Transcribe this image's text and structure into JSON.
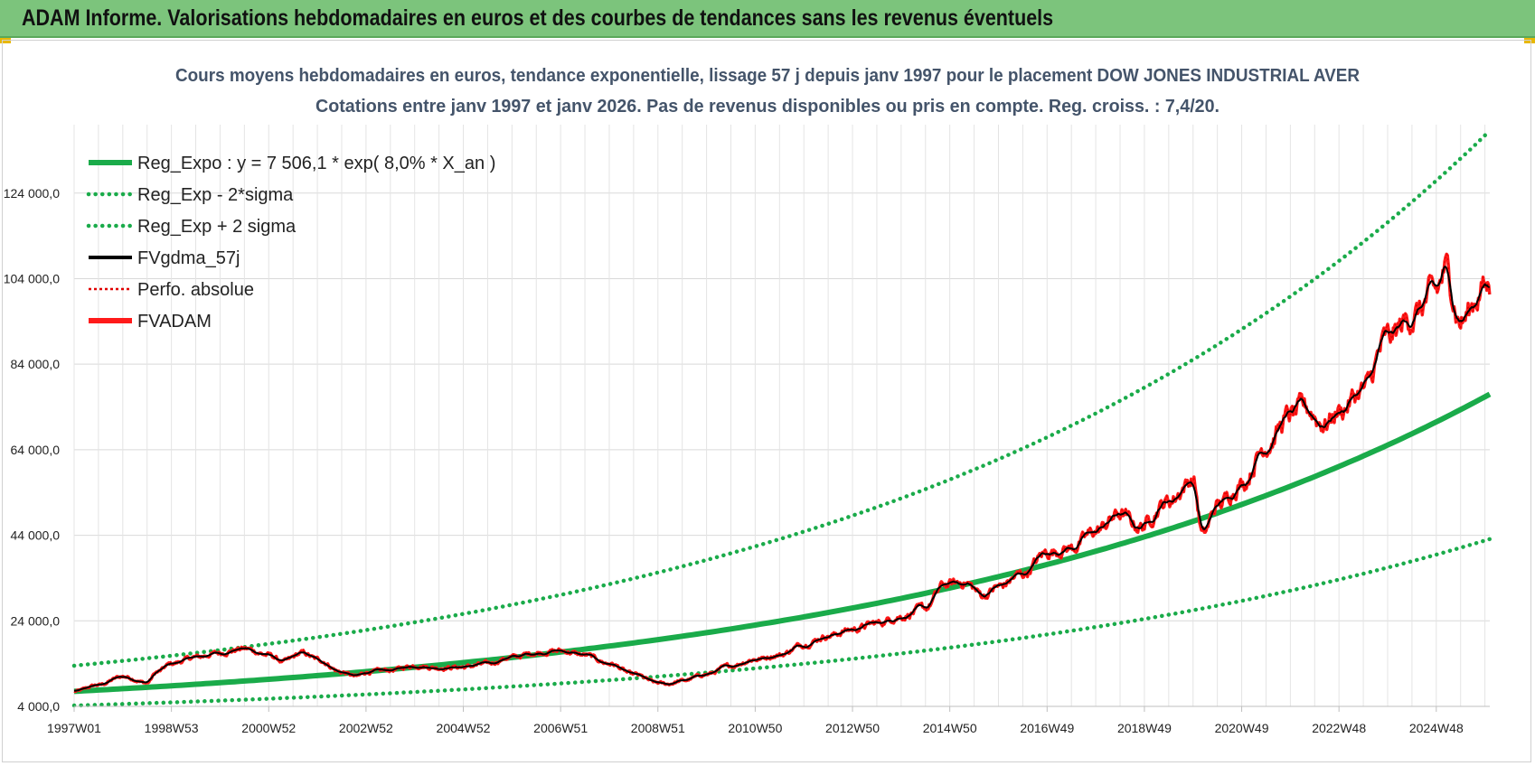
{
  "header": {
    "title": "ADAM Informe. Valorisations hebdomadaires en euros et des courbes de tendances sans les revenus éventuels"
  },
  "colors": {
    "header_bg": "#7cc47c",
    "reg_expo": "#1aab4a",
    "sigma": "#1aab4a",
    "fvgdma": "#000000",
    "perfo": "#e00000",
    "fvadam": "#ff1a1a",
    "subtitle": "#44546a"
  },
  "chart_data": {
    "type": "line",
    "title_line1": "Cours moyens hebdomadaires en euros, tendance exponentielle, lissage 57 j depuis janv 1997 pour le placement DOW JONES INDUSTRIAL AVER",
    "title_line2": "Cotations entre janv 1997 et janv 2026. Pas de revenus disponibles ou pris  en compte. Reg. croiss. : 7,4/20.",
    "xlabel": "",
    "ylabel": "",
    "ylim": [
      4000,
      140000
    ],
    "xlim": [
      1997.0,
      2026.1
    ],
    "y_ticks": [
      4000,
      24000,
      44000,
      64000,
      84000,
      104000,
      124000
    ],
    "y_tick_labels": [
      "4 000,0",
      "24 000,0",
      "44 000,0",
      "64 000,0",
      "84 000,0",
      "104 000,0",
      "124 000,0"
    ],
    "x_ticks": [
      1997.0,
      1999.0,
      2001.0,
      2003.0,
      2005.0,
      2007.0,
      2009.0,
      2011.0,
      2013.0,
      2015.0,
      2017.0,
      2019.0,
      2021.0,
      2023.0,
      2025.0
    ],
    "x_tick_labels": [
      "1997W01",
      "1998W53",
      "2000W52",
      "2002W52",
      "2004W52",
      "2006W51",
      "2008W51",
      "2010W50",
      "2012W50",
      "2014W50",
      "2016W49",
      "2018W49",
      "2020W49",
      "2022W48",
      "2024W48"
    ],
    "grid": true,
    "legend_position": "top-left",
    "regression": {
      "a": 7506.1,
      "rate": 0.08,
      "sigma_factor_low": 0.56,
      "sigma_factor_high": 1.8
    },
    "series": [
      {
        "name": "Reg_Expo : y = 7 506,1 * exp( 8,0% *  X_an )",
        "style": "solid-thick",
        "color": "#1aab4a",
        "kind": "reg"
      },
      {
        "name": "Reg_Exp - 2*sigma",
        "style": "dotted",
        "color": "#1aab4a",
        "kind": "low"
      },
      {
        "name": "Reg_Exp + 2 sigma",
        "style": "dotted",
        "color": "#1aab4a",
        "kind": "high"
      },
      {
        "name": "FVgdma_57j",
        "style": "solid",
        "color": "#000000",
        "kind": "smooth"
      },
      {
        "name": "Perfo. absolue",
        "style": "dotted-thin",
        "color": "#e00000",
        "kind": "perfo"
      },
      {
        "name": "FVADAM",
        "style": "solid-thick",
        "color": "#ff1a1a",
        "kind": "main"
      }
    ],
    "fvadam_points": {
      "x": [
        1997.0,
        1997.5,
        1998.0,
        1998.5,
        1998.7,
        1999.0,
        1999.5,
        2000.0,
        2000.5,
        2001.0,
        2001.3,
        2001.7,
        2002.0,
        2002.5,
        2002.8,
        2003.0,
        2003.5,
        2004.0,
        2004.5,
        2005.0,
        2005.5,
        2006.0,
        2006.5,
        2007.0,
        2007.5,
        2008.0,
        2008.5,
        2009.0,
        2009.2,
        2009.5,
        2010.0,
        2010.5,
        2011.0,
        2011.5,
        2012.0,
        2012.5,
        2013.0,
        2013.5,
        2014.0,
        2014.5,
        2014.9,
        2015.3,
        2015.7,
        2016.0,
        2016.5,
        2017.0,
        2017.5,
        2018.0,
        2018.5,
        2018.9,
        2019.5,
        2020.0,
        2020.2,
        2020.5,
        2021.0,
        2021.5,
        2022.0,
        2022.3,
        2022.7,
        2023.0,
        2023.5,
        2024.0,
        2024.5,
        2025.0,
        2025.2,
        2025.5,
        2026.0
      ],
      "y": [
        7500,
        9000,
        11000,
        9500,
        12000,
        14000,
        15500,
        16500,
        17500,
        16000,
        14500,
        16500,
        15000,
        12000,
        11000,
        12000,
        12500,
        13500,
        13000,
        13200,
        14000,
        15500,
        16500,
        17000,
        16000,
        14000,
        11500,
        9500,
        9200,
        10000,
        11500,
        13500,
        15000,
        16000,
        18500,
        20500,
        22000,
        23500,
        25000,
        27000,
        32500,
        33000,
        30000,
        32000,
        35000,
        40000,
        41000,
        45000,
        49000,
        46000,
        52000,
        57000,
        44000,
        51000,
        56000,
        65000,
        72000,
        74000,
        70000,
        73000,
        78000,
        90000,
        95000,
        101000,
        106000,
        94000,
        102000
      ]
    }
  }
}
